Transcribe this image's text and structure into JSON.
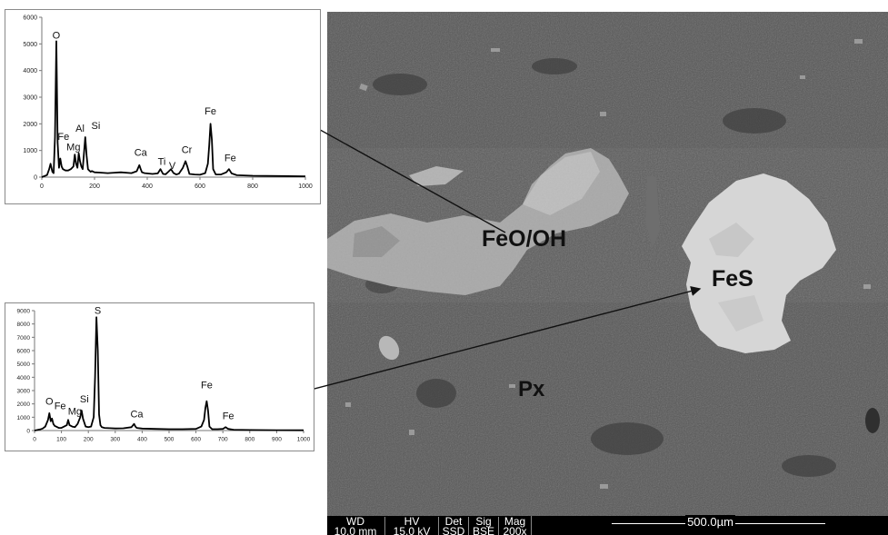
{
  "sem_image": {
    "labels": {
      "feo_oh": "FeO/OH",
      "fes": "FeS",
      "px": "Px"
    },
    "databar": {
      "columns": [
        {
          "header": "WD",
          "value": "10.0 mm"
        },
        {
          "header": "HV",
          "value": "15.0 kV"
        },
        {
          "header": "Det",
          "value": "SSD"
        },
        {
          "header": "Sig",
          "value": "BSE"
        },
        {
          "header": "Mag",
          "value": "200x"
        }
      ],
      "scale_bar": "500.0µm"
    }
  },
  "chart_data": [
    {
      "type": "line",
      "title": "",
      "xlabel": "",
      "ylabel": "",
      "xlim": [
        0,
        1000
      ],
      "ylim": [
        0,
        6000
      ],
      "x_ticks": [
        0,
        200,
        400,
        600,
        800,
        1000
      ],
      "y_ticks": [
        0,
        1000,
        2000,
        3000,
        4000,
        5000,
        6000
      ],
      "grid": false,
      "series": [
        {
          "x": [
            0,
            20,
            28,
            33,
            40,
            45,
            50,
            55,
            60,
            65,
            70,
            75,
            80,
            90,
            100,
            110,
            120,
            125,
            130,
            135,
            140,
            145,
            150,
            155,
            160,
            165,
            170,
            175,
            180,
            185,
            190,
            200,
            220,
            250,
            300,
            340,
            360,
            370,
            375,
            380,
            390,
            420,
            440,
            450,
            460,
            470,
            480,
            490,
            500,
            510,
            520,
            535,
            545,
            552,
            560,
            580,
            600,
            620,
            630,
            635,
            640,
            645,
            650,
            660,
            680,
            700,
            710,
            720,
            740,
            800,
            900,
            1000
          ],
          "y": [
            0,
            80,
            300,
            500,
            200,
            150,
            1500,
            5100,
            1300,
            350,
            700,
            400,
            300,
            250,
            250,
            300,
            400,
            850,
            500,
            350,
            900,
            600,
            400,
            300,
            900,
            1500,
            800,
            300,
            250,
            200,
            230,
            180,
            170,
            150,
            180,
            150,
            220,
            450,
            300,
            180,
            150,
            120,
            140,
            300,
            120,
            110,
            200,
            300,
            150,
            100,
            130,
            350,
            600,
            400,
            120,
            100,
            90,
            150,
            500,
            1200,
            2000,
            1400,
            300,
            100,
            100,
            180,
            300,
            140,
            70,
            50,
            40,
            30
          ]
        }
      ],
      "annotations": [
        {
          "text": "O",
          "x": 55,
          "y": 5100
        },
        {
          "text": "Fe",
          "x": 82,
          "y": 1300
        },
        {
          "text": "Al",
          "x": 145,
          "y": 1600
        },
        {
          "text": "Mg",
          "x": 120,
          "y": 900
        },
        {
          "text": "Si",
          "x": 205,
          "y": 1700
        },
        {
          "text": "Ca",
          "x": 375,
          "y": 700
        },
        {
          "text": "Ti",
          "x": 455,
          "y": 350
        },
        {
          "text": "V",
          "x": 495,
          "y": 200
        },
        {
          "text": "Cr",
          "x": 550,
          "y": 800
        },
        {
          "text": "Fe",
          "x": 640,
          "y": 2250
        },
        {
          "text": "Fe",
          "x": 715,
          "y": 500
        }
      ]
    },
    {
      "type": "line",
      "title": "",
      "xlabel": "",
      "ylabel": "",
      "xlim": [
        0,
        1000
      ],
      "ylim": [
        0,
        9000
      ],
      "x_ticks": [
        0,
        100,
        200,
        300,
        400,
        500,
        600,
        700,
        800,
        900,
        1000
      ],
      "y_ticks": [
        0,
        1000,
        2000,
        3000,
        4000,
        5000,
        6000,
        7000,
        8000,
        9000
      ],
      "grid": false,
      "series": [
        {
          "x": [
            0,
            20,
            30,
            40,
            50,
            55,
            60,
            65,
            70,
            75,
            80,
            90,
            100,
            110,
            120,
            125,
            130,
            140,
            150,
            160,
            170,
            175,
            180,
            190,
            200,
            210,
            220,
            225,
            230,
            235,
            240,
            245,
            250,
            260,
            280,
            300,
            330,
            360,
            370,
            375,
            380,
            400,
            450,
            500,
            550,
            600,
            620,
            630,
            635,
            640,
            645,
            650,
            660,
            680,
            700,
            710,
            720,
            740,
            800,
            900,
            1000
          ],
          "y": [
            0,
            80,
            150,
            300,
            800,
            1300,
            700,
            900,
            500,
            350,
            300,
            200,
            200,
            300,
            400,
            800,
            400,
            300,
            250,
            500,
            1000,
            1500,
            900,
            300,
            250,
            300,
            1000,
            4000,
            8500,
            6000,
            1200,
            400,
            250,
            200,
            180,
            160,
            170,
            250,
            500,
            300,
            200,
            150,
            120,
            100,
            100,
            120,
            300,
            800,
            1700,
            2200,
            1500,
            300,
            100,
            100,
            120,
            250,
            120,
            60,
            40,
            30,
            20
          ]
        }
      ],
      "annotations": [
        {
          "text": "S",
          "x": 235,
          "y": 8550
        },
        {
          "text": "O",
          "x": 55,
          "y": 1750
        },
        {
          "text": "Fe",
          "x": 95,
          "y": 1400
        },
        {
          "text": "Mg",
          "x": 150,
          "y": 1000
        },
        {
          "text": "Si",
          "x": 185,
          "y": 1900
        },
        {
          "text": "Ca",
          "x": 380,
          "y": 800
        },
        {
          "text": "Fe",
          "x": 640,
          "y": 2950
        },
        {
          "text": "Fe",
          "x": 720,
          "y": 650
        }
      ]
    }
  ]
}
